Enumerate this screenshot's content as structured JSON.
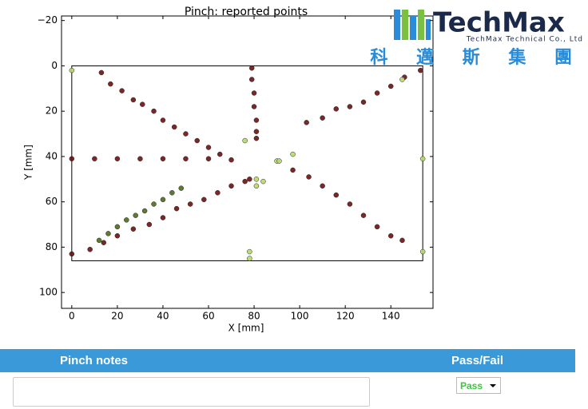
{
  "chart_data": {
    "type": "scatter",
    "title": "Pinch: reported points",
    "x_label": "X [mm]",
    "y_label": "Y [mm]",
    "xlim": [
      -4.5,
      158.5
    ],
    "ylim": [
      -22,
      107
    ],
    "y_inverted": true,
    "xticks": [
      0,
      20,
      40,
      60,
      80,
      100,
      120,
      140
    ],
    "yticks": [
      {
        "value": -20,
        "label": "−20"
      },
      0,
      20,
      40,
      60,
      80,
      100
    ],
    "sensor_area": {
      "x": [
        0,
        154
      ],
      "y": [
        0,
        86
      ]
    },
    "series": [
      {
        "color": "#6b0f0f",
        "x": [
          13,
          17,
          22,
          27,
          31,
          36,
          40,
          45,
          50,
          55,
          60,
          65
        ],
        "y": [
          3,
          8,
          11,
          15,
          17,
          20,
          24,
          27,
          30,
          33,
          36,
          39
        ]
      },
      {
        "color": "#6b0f0f",
        "x": [
          0,
          10,
          20,
          30,
          40,
          50,
          60,
          70
        ],
        "y": [
          41,
          41,
          41,
          41,
          41,
          41,
          41,
          41.5
        ]
      },
      {
        "color": "#6b0f0f",
        "x": [
          79,
          79,
          80,
          80,
          81,
          81,
          81
        ],
        "y": [
          1,
          6,
          12,
          18,
          24,
          29,
          32
        ]
      },
      {
        "color": "#6b0f0f",
        "x": [
          103,
          110,
          116,
          122,
          128,
          134,
          140,
          146,
          153
        ],
        "y": [
          25,
          23,
          19,
          18,
          16,
          12,
          9,
          5,
          2
        ]
      },
      {
        "color": "#6b0f0f",
        "x": [
          97,
          104,
          110,
          116,
          122,
          128,
          134,
          140,
          145
        ],
        "y": [
          46,
          49,
          53,
          57,
          61,
          66,
          71,
          75,
          77
        ]
      },
      {
        "color": "#6b0f0f",
        "x": [
          0,
          8,
          14,
          20,
          27,
          34,
          40,
          46,
          52,
          58,
          64,
          70,
          76,
          78
        ],
        "y": [
          83,
          81,
          78,
          75,
          72,
          70,
          67,
          63,
          61,
          59,
          56,
          53,
          51,
          50
        ]
      },
      {
        "color": "#4f6a1c",
        "x": [
          12,
          16,
          20,
          24,
          28,
          32,
          36,
          40,
          44,
          48
        ],
        "y": [
          77,
          74,
          71,
          68,
          66,
          64,
          61,
          59,
          56,
          54
        ]
      },
      {
        "color": "#b8d86b",
        "x": [
          0,
          76,
          90,
          91,
          97,
          81,
          84,
          81,
          78,
          78,
          145,
          154,
          154
        ],
        "y": [
          2,
          33,
          42,
          42,
          39,
          50,
          51,
          53,
          82,
          85,
          6,
          41,
          82
        ]
      }
    ]
  },
  "logo": {
    "name": "TechMax",
    "company": "TechMax Technical Co., Ltd",
    "chinese": "科 邁 斯 集 團"
  },
  "form": {
    "notes_header": "Pinch notes",
    "result_header": "Pass/Fail",
    "result": "Pass"
  }
}
